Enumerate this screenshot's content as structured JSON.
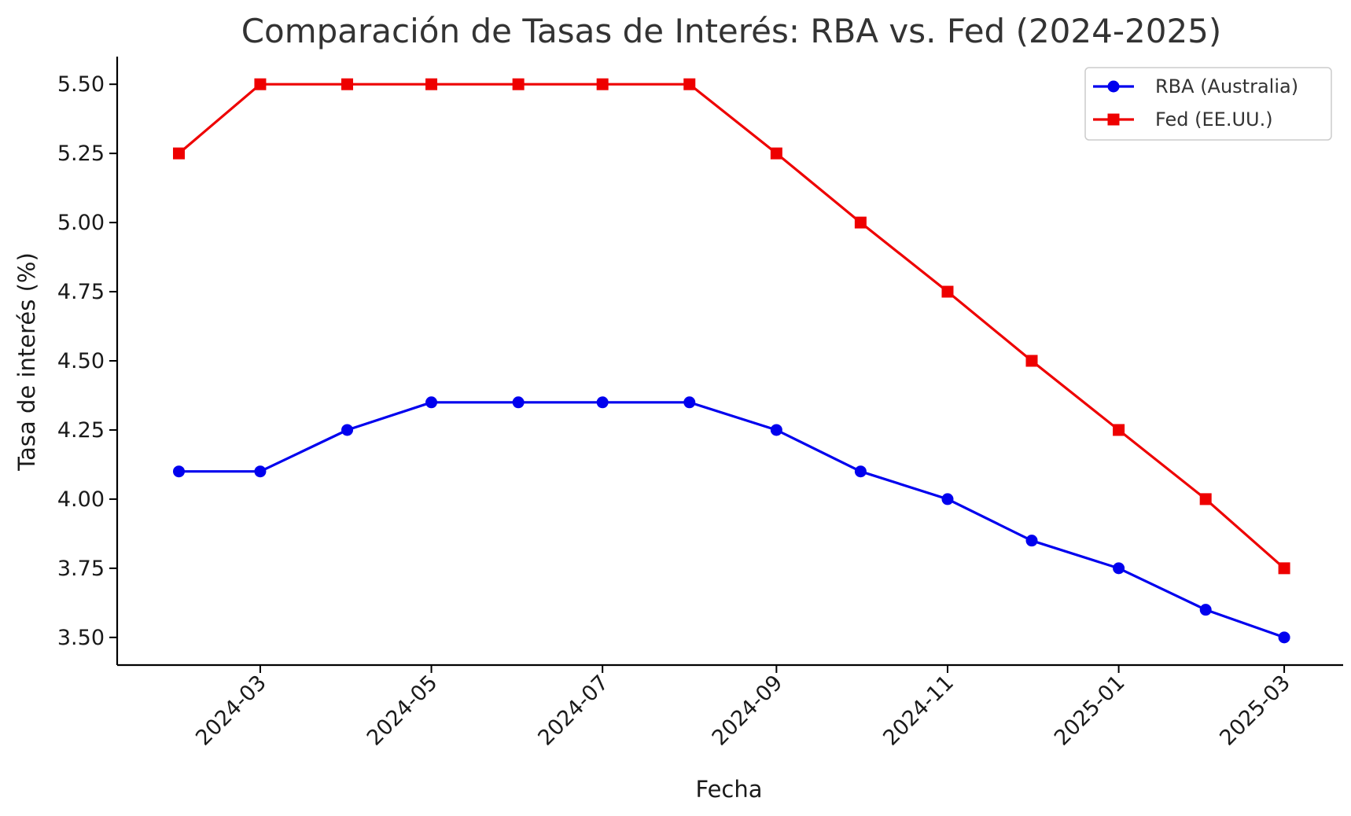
{
  "chart_data": {
    "type": "line",
    "title": "Comparación de Tasas de Interés: RBA vs. Fed (2024-2025)",
    "xlabel": "Fecha",
    "ylabel": "Tasa de interés (%)",
    "x": [
      "2024-02-01",
      "2024-03-01",
      "2024-04-01",
      "2024-05-01",
      "2024-06-01",
      "2024-07-01",
      "2024-08-01",
      "2024-09-01",
      "2024-10-01",
      "2024-11-01",
      "2024-12-01",
      "2025-01-01",
      "2025-02-01",
      "2025-03-01"
    ],
    "series": [
      {
        "name": "RBA (Australia)",
        "color": "#0000ee",
        "marker": "circle",
        "values": [
          4.1,
          4.1,
          4.25,
          4.35,
          4.35,
          4.35,
          4.35,
          4.25,
          4.1,
          4.0,
          3.85,
          3.75,
          3.6,
          3.5
        ]
      },
      {
        "name": "Fed (EE.UU.)",
        "color": "#ee0000",
        "marker": "square",
        "values": [
          5.25,
          5.5,
          5.5,
          5.5,
          5.5,
          5.5,
          5.5,
          5.25,
          5.0,
          4.75,
          4.5,
          4.25,
          4.0,
          3.75
        ]
      }
    ],
    "x_ticks": [
      {
        "date": "2024-03-01",
        "label": "2024-03"
      },
      {
        "date": "2024-05-01",
        "label": "2024-05"
      },
      {
        "date": "2024-07-01",
        "label": "2024-07"
      },
      {
        "date": "2024-09-01",
        "label": "2024-09"
      },
      {
        "date": "2024-11-01",
        "label": "2024-11"
      },
      {
        "date": "2025-01-01",
        "label": "2025-01"
      },
      {
        "date": "2025-03-01",
        "label": "2025-03"
      }
    ],
    "y_ticks": [
      3.5,
      3.75,
      4.0,
      4.25,
      4.5,
      4.75,
      5.0,
      5.25,
      5.5
    ],
    "ylim": [
      3.4,
      5.6
    ],
    "xlim": [
      "2024-01-10",
      "2025-03-22"
    ],
    "grid": false,
    "legend_position": "top-right"
  }
}
